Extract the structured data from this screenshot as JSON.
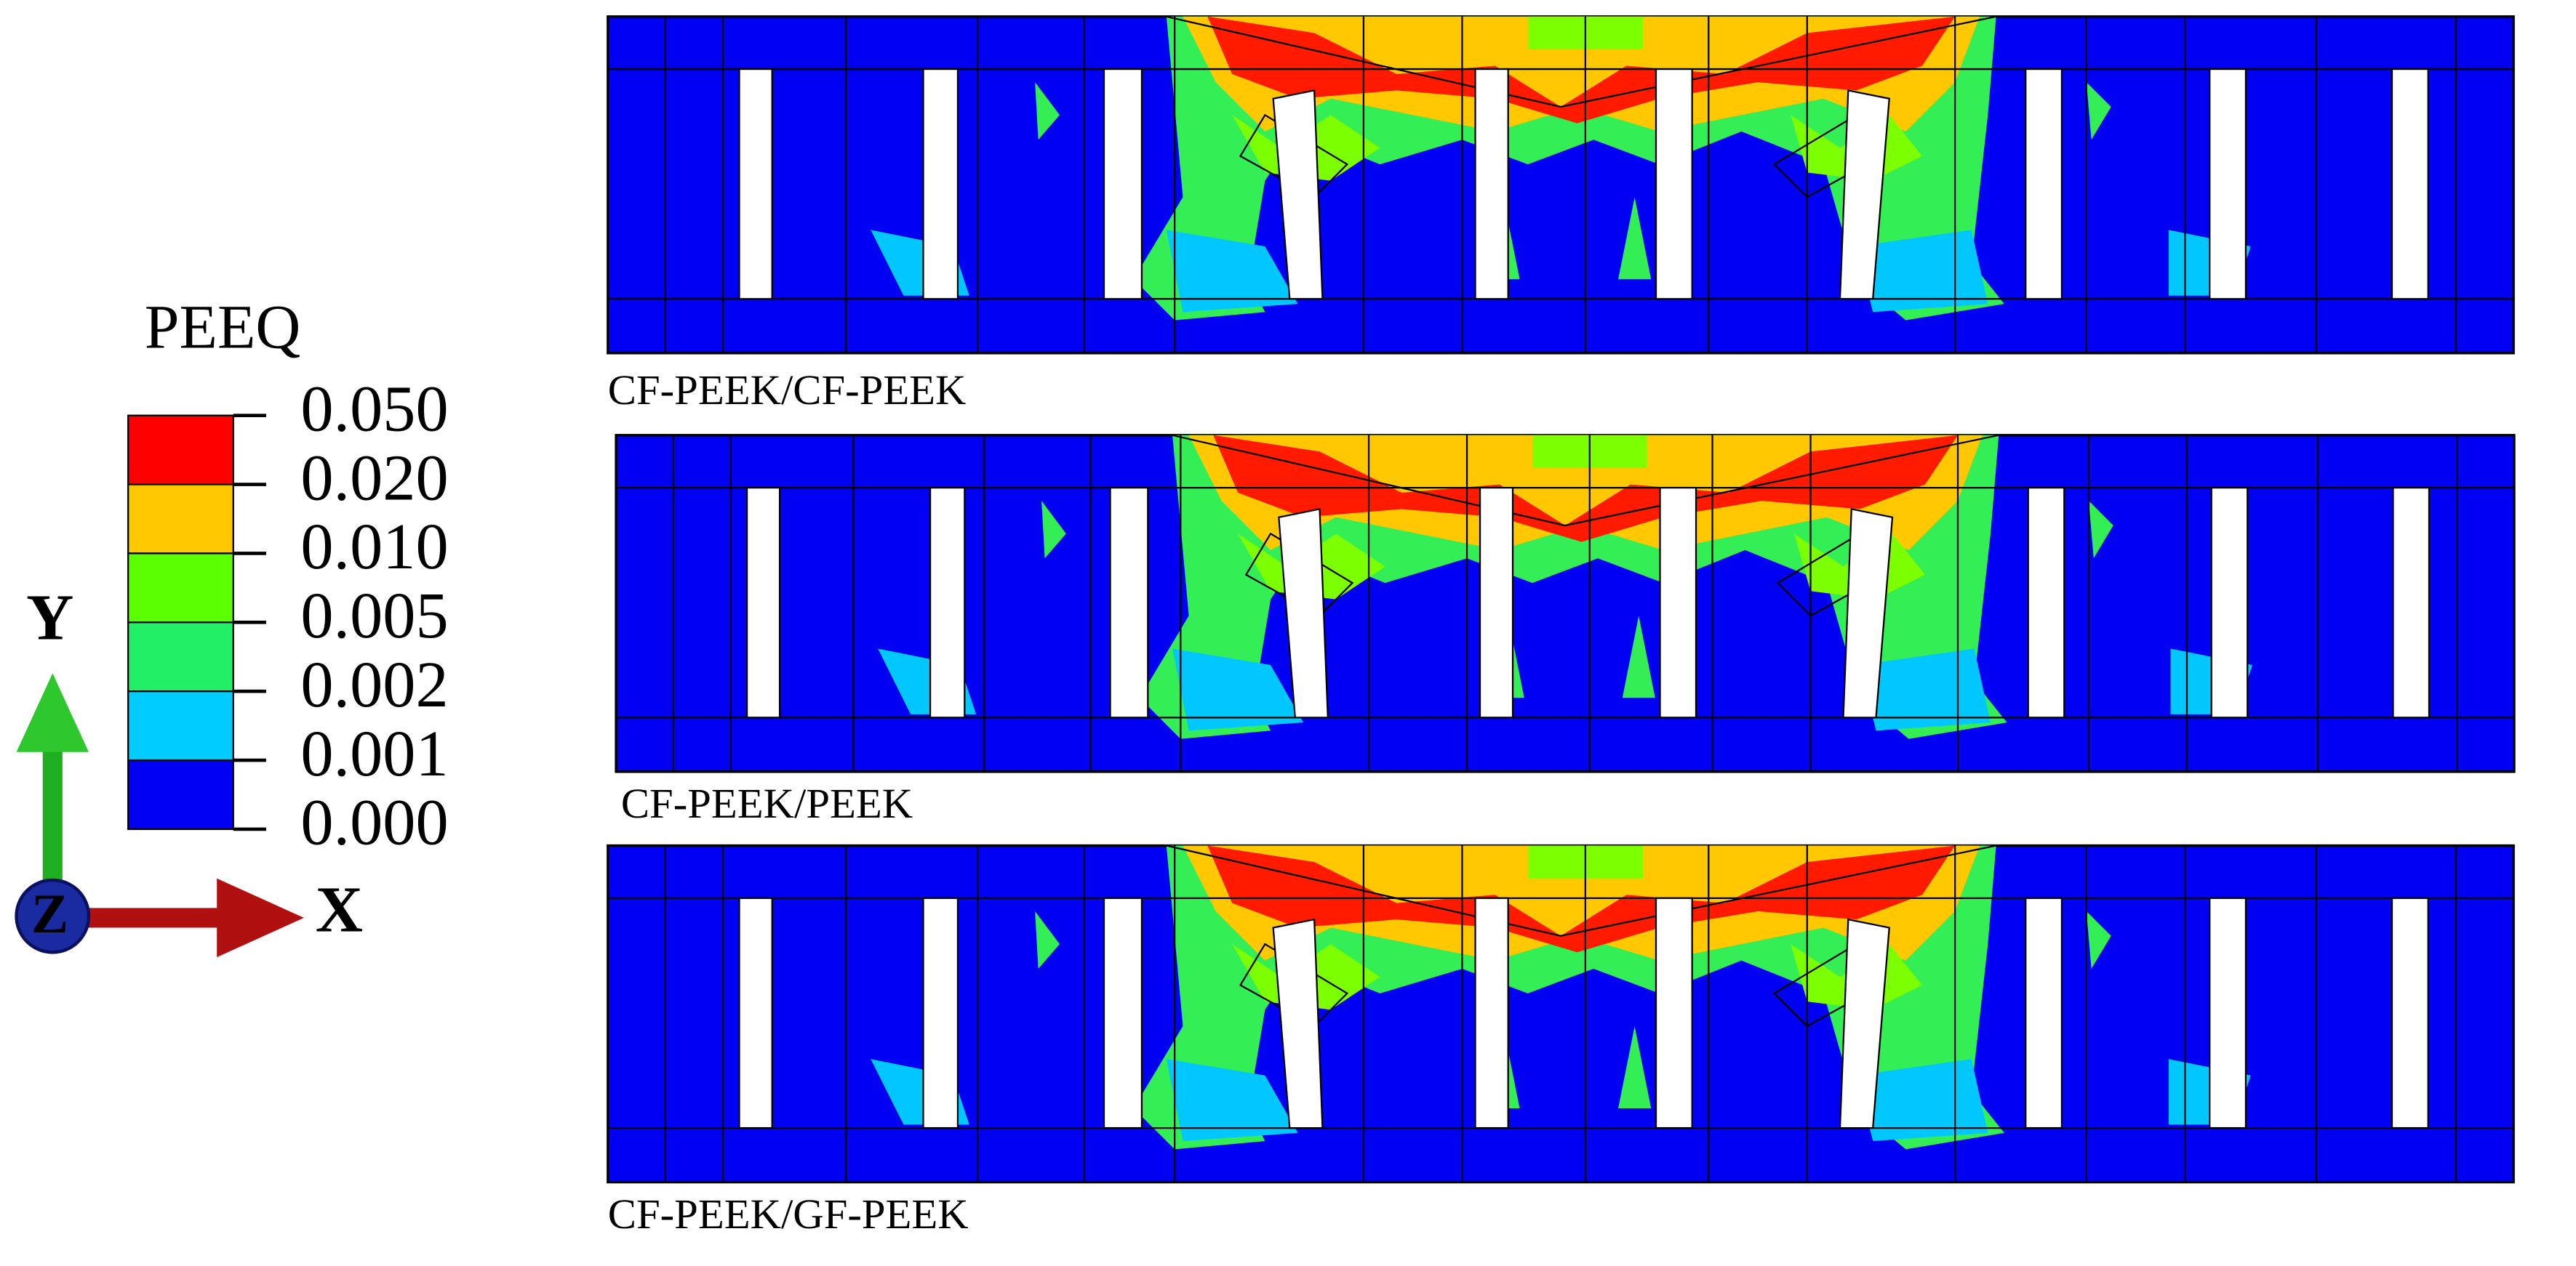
{
  "legend": {
    "title": "PEEQ",
    "labels": [
      "0.050",
      "0.020",
      "0.010",
      "0.005",
      "0.002",
      "0.001",
      "0.000"
    ]
  },
  "axes": {
    "y": "Y",
    "z": "Z",
    "x": "X"
  },
  "panels": [
    {
      "caption": "CF-PEEK/CF-PEEK"
    },
    {
      "caption": "CF-PEEK/PEEK"
    },
    {
      "caption": "CF-PEEK/GF-PEEK"
    }
  ]
}
